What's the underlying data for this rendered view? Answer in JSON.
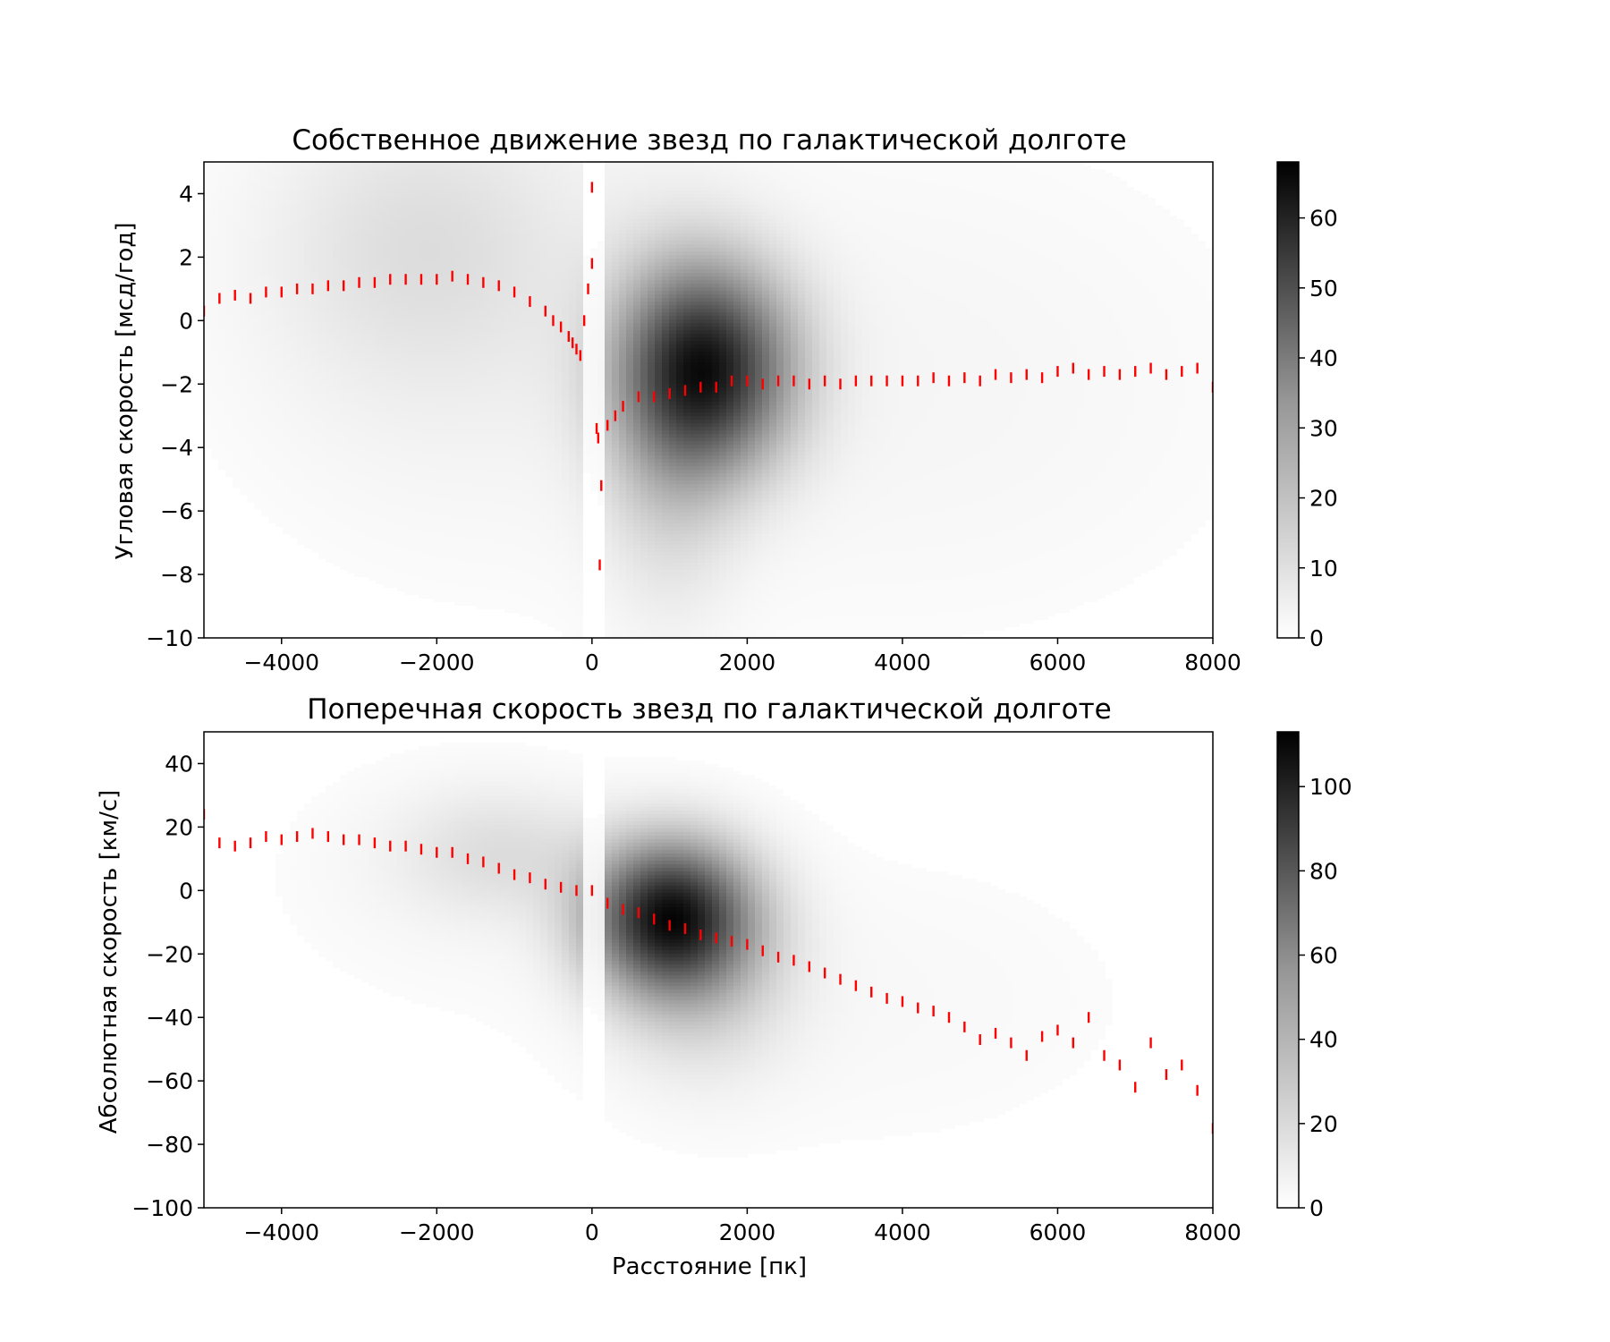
{
  "colors": {
    "background": "#ffffff",
    "axes": "#000000",
    "binned_mean_marker": "#ff0000",
    "colormap": "Greys"
  },
  "chart_data": [
    {
      "type": "heatmap",
      "title": "Собственное движение звезд по галактической долготе",
      "xlabel": "",
      "ylabel": "Угловая скорость [мсд/год]",
      "xlim": [
        -5000,
        8000
      ],
      "ylim": [
        -10,
        5
      ],
      "xticks": [
        -4000,
        -2000,
        0,
        2000,
        4000,
        6000,
        8000
      ],
      "xtick_labels": [
        "−4000",
        "−2000",
        "0",
        "2000",
        "4000",
        "6000",
        "8000"
      ],
      "yticks": [
        -10,
        -8,
        -6,
        -4,
        -2,
        0,
        2,
        4
      ],
      "ytick_labels": [
        "−10",
        "−8",
        "−6",
        "−4",
        "−2",
        "0",
        "2",
        "4"
      ],
      "colorbar": {
        "min": 0,
        "max": 68,
        "ticks": [
          0,
          10,
          20,
          30,
          40,
          50,
          60
        ],
        "tick_labels": [
          "0",
          "10",
          "20",
          "30",
          "40",
          "50",
          "60"
        ]
      },
      "density_blobs": [
        {
          "x": 1500,
          "y": -1.5,
          "sx": 750,
          "sy": 2.2,
          "peak": 55
        },
        {
          "x": 1000,
          "y": -3.5,
          "sx": 600,
          "sy": 3.5,
          "peak": 12
        },
        {
          "x": -2200,
          "y": 2.5,
          "sx": 1300,
          "sy": 3.0,
          "peak": 6
        },
        {
          "x": -2000,
          "y": 0.5,
          "sx": 2200,
          "sy": 5.5,
          "peak": 3
        },
        {
          "x": 4000,
          "y": -2.0,
          "sx": 3500,
          "sy": 6.0,
          "peak": 2.5
        }
      ],
      "binned_means": [
        [
          -5000,
          0.3
        ],
        [
          -4800,
          0.7
        ],
        [
          -4600,
          0.8
        ],
        [
          -4400,
          0.7
        ],
        [
          -4200,
          0.9
        ],
        [
          -4000,
          0.9
        ],
        [
          -3800,
          1.0
        ],
        [
          -3600,
          1.0
        ],
        [
          -3400,
          1.1
        ],
        [
          -3200,
          1.1
        ],
        [
          -3000,
          1.2
        ],
        [
          -2800,
          1.2
        ],
        [
          -2600,
          1.3
        ],
        [
          -2400,
          1.3
        ],
        [
          -2200,
          1.3
        ],
        [
          -2000,
          1.3
        ],
        [
          -1800,
          1.4
        ],
        [
          -1600,
          1.3
        ],
        [
          -1400,
          1.2
        ],
        [
          -1200,
          1.1
        ],
        [
          -1000,
          0.9
        ],
        [
          -800,
          0.6
        ],
        [
          -600,
          0.3
        ],
        [
          -500,
          0.0
        ],
        [
          -400,
          -0.2
        ],
        [
          -300,
          -0.5
        ],
        [
          -250,
          -0.7
        ],
        [
          -200,
          -0.9
        ],
        [
          -150,
          -1.1
        ],
        [
          -100,
          0.0
        ],
        [
          -50,
          1.0
        ],
        [
          0,
          1.8
        ],
        [
          0,
          4.2
        ],
        [
          60,
          -3.4
        ],
        [
          80,
          -3.7
        ],
        [
          100,
          -7.7
        ],
        [
          120,
          -5.2
        ],
        [
          200,
          -3.3
        ],
        [
          300,
          -3.0
        ],
        [
          400,
          -2.7
        ],
        [
          600,
          -2.4
        ],
        [
          800,
          -2.4
        ],
        [
          1000,
          -2.3
        ],
        [
          1200,
          -2.2
        ],
        [
          1400,
          -2.1
        ],
        [
          1600,
          -2.1
        ],
        [
          1800,
          -1.9
        ],
        [
          2000,
          -1.9
        ],
        [
          2200,
          -2.0
        ],
        [
          2400,
          -1.9
        ],
        [
          2600,
          -1.9
        ],
        [
          2800,
          -2.0
        ],
        [
          3000,
          -1.9
        ],
        [
          3200,
          -2.0
        ],
        [
          3400,
          -1.9
        ],
        [
          3600,
          -1.9
        ],
        [
          3800,
          -1.9
        ],
        [
          4000,
          -1.9
        ],
        [
          4200,
          -1.9
        ],
        [
          4400,
          -1.8
        ],
        [
          4600,
          -1.9
        ],
        [
          4800,
          -1.8
        ],
        [
          5000,
          -1.9
        ],
        [
          5200,
          -1.7
        ],
        [
          5400,
          -1.8
        ],
        [
          5600,
          -1.7
        ],
        [
          5800,
          -1.8
        ],
        [
          6000,
          -1.6
        ],
        [
          6200,
          -1.5
        ],
        [
          6400,
          -1.7
        ],
        [
          6600,
          -1.6
        ],
        [
          6800,
          -1.7
        ],
        [
          7000,
          -1.6
        ],
        [
          7200,
          -1.5
        ],
        [
          7400,
          -1.7
        ],
        [
          7600,
          -1.6
        ],
        [
          7800,
          -1.5
        ],
        [
          8000,
          -2.1
        ]
      ]
    },
    {
      "type": "heatmap",
      "title": "Поперечная скорость звезд по галактической долготе",
      "xlabel": "Расстояние [пк]",
      "ylabel": "Абсолютная скорость [км/с]",
      "xlim": [
        -5000,
        8000
      ],
      "ylim": [
        -100,
        50
      ],
      "xticks": [
        -4000,
        -2000,
        0,
        2000,
        4000,
        6000,
        8000
      ],
      "xtick_labels": [
        "−4000",
        "−2000",
        "0",
        "2000",
        "4000",
        "6000",
        "8000"
      ],
      "yticks": [
        -100,
        -80,
        -60,
        -40,
        -20,
        0,
        20,
        40
      ],
      "ytick_labels": [
        "−100",
        "−80",
        "−60",
        "−40",
        "−20",
        "0",
        "20",
        "40"
      ],
      "colorbar": {
        "min": 0,
        "max": 113,
        "ticks": [
          0,
          20,
          40,
          60,
          80,
          100
        ],
        "tick_labels": [
          "0",
          "20",
          "40",
          "60",
          "80",
          "100"
        ]
      },
      "density_blobs": [
        {
          "x": 1000,
          "y": -8,
          "sx": 700,
          "sy": 16,
          "peak": 95
        },
        {
          "x": 1400,
          "y": -25,
          "sx": 800,
          "sy": 22,
          "peak": 20
        },
        {
          "x": -1200,
          "y": 12,
          "sx": 900,
          "sy": 14,
          "peak": 12
        },
        {
          "x": -2000,
          "y": 5,
          "sx": 1800,
          "sy": 30,
          "peak": 3
        },
        {
          "x": 3500,
          "y": -35,
          "sx": 3000,
          "sy": 40,
          "peak": 3
        }
      ],
      "binned_means": [
        [
          -5000,
          24
        ],
        [
          -4800,
          15
        ],
        [
          -4600,
          14
        ],
        [
          -4400,
          15
        ],
        [
          -4200,
          17
        ],
        [
          -4000,
          16
        ],
        [
          -3800,
          17
        ],
        [
          -3600,
          18
        ],
        [
          -3400,
          17
        ],
        [
          -3200,
          16
        ],
        [
          -3000,
          16
        ],
        [
          -2800,
          15
        ],
        [
          -2600,
          14
        ],
        [
          -2400,
          14
        ],
        [
          -2200,
          13
        ],
        [
          -2000,
          12
        ],
        [
          -1800,
          12
        ],
        [
          -1600,
          10
        ],
        [
          -1400,
          9
        ],
        [
          -1200,
          7
        ],
        [
          -1000,
          5
        ],
        [
          -800,
          4
        ],
        [
          -600,
          2
        ],
        [
          -400,
          1
        ],
        [
          -200,
          0
        ],
        [
          0,
          0
        ],
        [
          200,
          -4
        ],
        [
          400,
          -6
        ],
        [
          600,
          -7
        ],
        [
          800,
          -9
        ],
        [
          1000,
          -11
        ],
        [
          1200,
          -12
        ],
        [
          1400,
          -14
        ],
        [
          1600,
          -15
        ],
        [
          1800,
          -16
        ],
        [
          2000,
          -17
        ],
        [
          2200,
          -19
        ],
        [
          2400,
          -21
        ],
        [
          2600,
          -22
        ],
        [
          2800,
          -24
        ],
        [
          3000,
          -26
        ],
        [
          3200,
          -28
        ],
        [
          3400,
          -30
        ],
        [
          3600,
          -32
        ],
        [
          3800,
          -34
        ],
        [
          4000,
          -35
        ],
        [
          4200,
          -37
        ],
        [
          4400,
          -38
        ],
        [
          4600,
          -40
        ],
        [
          4800,
          -43
        ],
        [
          5000,
          -47
        ],
        [
          5200,
          -45
        ],
        [
          5400,
          -48
        ],
        [
          5600,
          -52
        ],
        [
          5800,
          -46
        ],
        [
          6000,
          -44
        ],
        [
          6200,
          -48
        ],
        [
          6400,
          -40
        ],
        [
          6600,
          -52
        ],
        [
          6800,
          -55
        ],
        [
          7000,
          -62
        ],
        [
          7200,
          -48
        ],
        [
          7400,
          -58
        ],
        [
          7600,
          -55
        ],
        [
          7800,
          -63
        ],
        [
          8000,
          -75
        ]
      ]
    }
  ]
}
